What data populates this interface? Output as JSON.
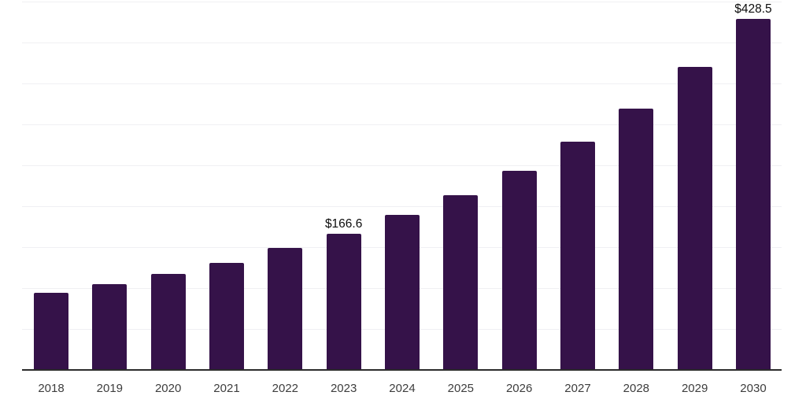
{
  "chart_data": {
    "type": "bar",
    "categories": [
      "2018",
      "2019",
      "2020",
      "2021",
      "2022",
      "2023",
      "2024",
      "2025",
      "2026",
      "2027",
      "2028",
      "2029",
      "2030"
    ],
    "values": [
      94,
      104.5,
      117,
      131,
      149,
      166.6,
      189,
      213.5,
      243.5,
      279,
      319.5,
      370,
      428.5
    ],
    "data_labels": [
      {
        "index": 5,
        "text": "$166.6"
      },
      {
        "index": 12,
        "text": "$428.5"
      }
    ],
    "title": "",
    "xlabel": "",
    "ylabel": "",
    "ylim": [
      0,
      450
    ],
    "gridline_step": 50,
    "grid": true,
    "legend": "none",
    "y_axis_tick_labels_visible": false,
    "colors": {
      "bar": "#351249",
      "axis_line": "#2b2b2b",
      "gridline": "#f0f0f3",
      "data_label_text": "#0d0d0d",
      "tick_label_text": "#3d3d3d"
    }
  }
}
